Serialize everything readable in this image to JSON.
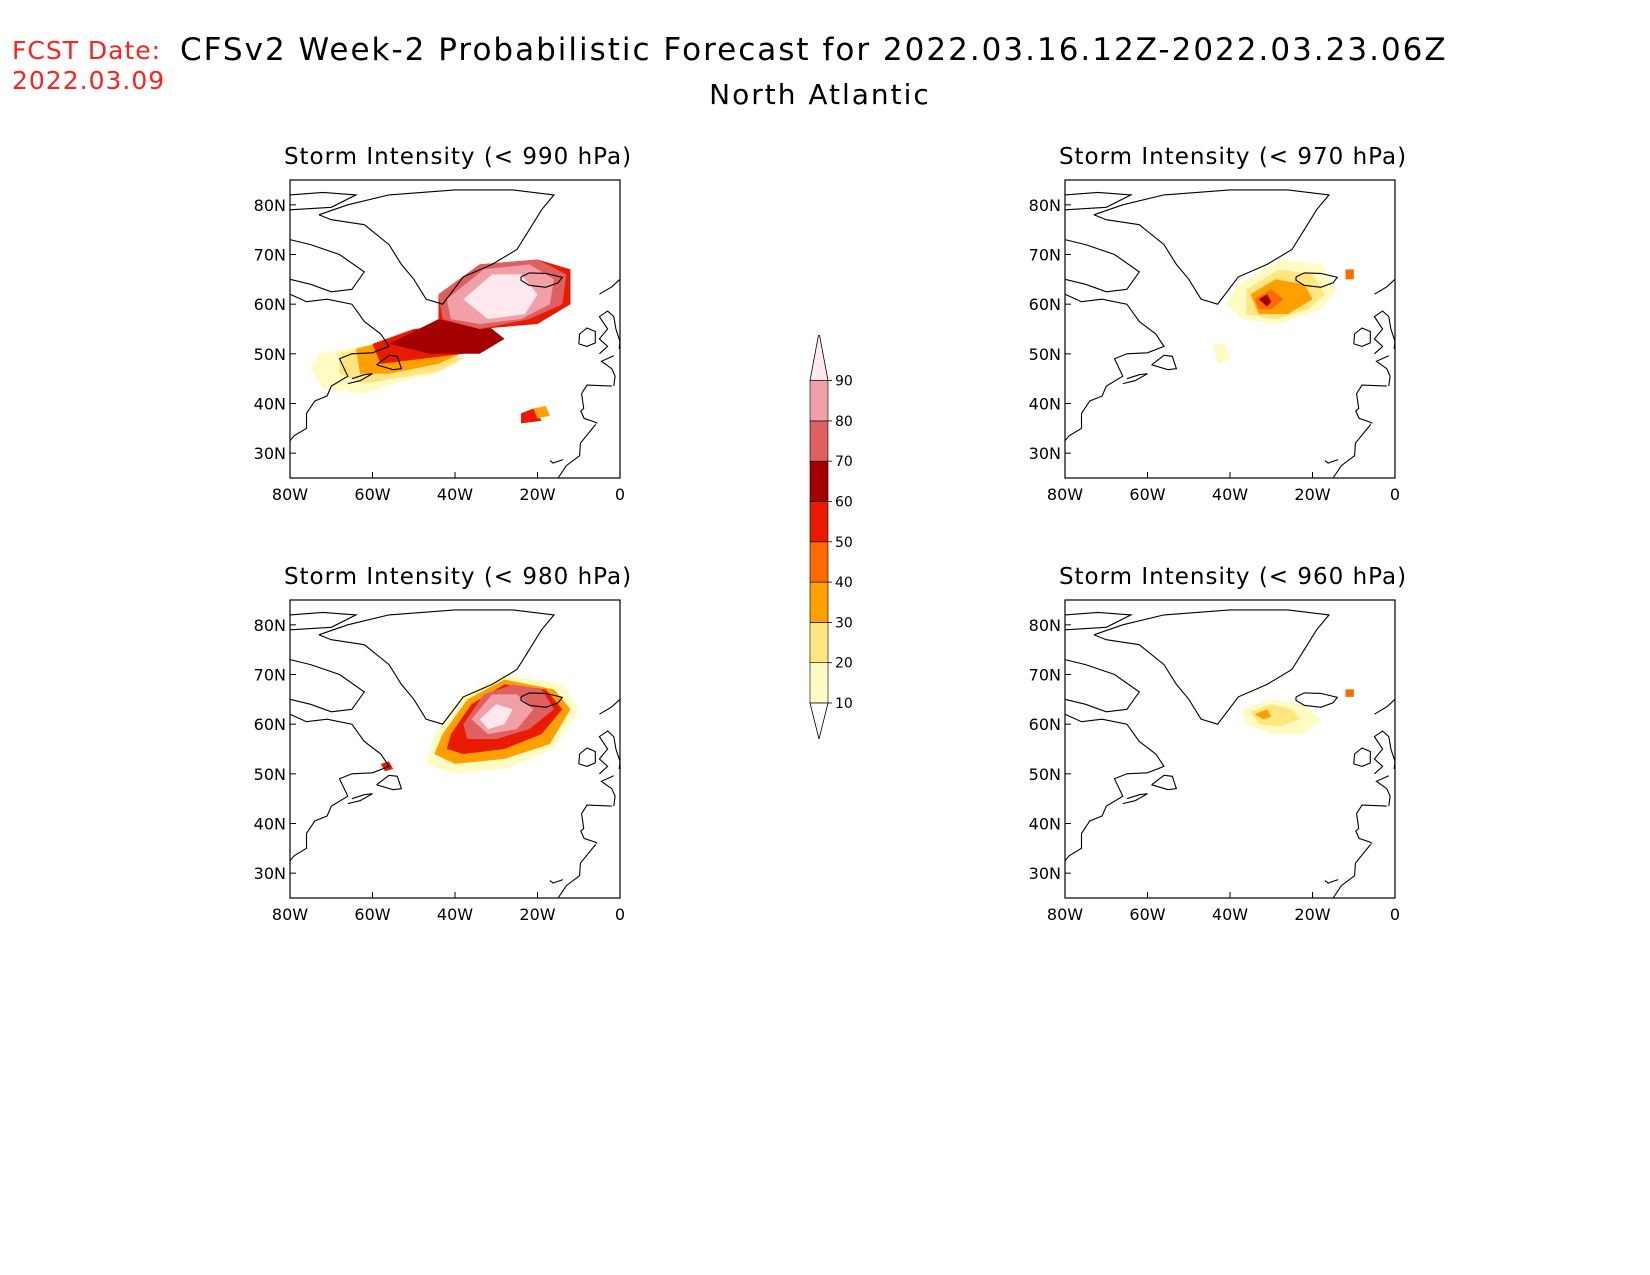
{
  "header": {
    "fcst_label": "FCST Date:",
    "fcst_date": "2022.03.09",
    "title": "CFSv2 Week-2 Probabilistic Forecast for 2022.03.16.12Z-2022.03.23.06Z",
    "subtitle": "North Atlantic"
  },
  "map_extent": {
    "lon": [
      -80,
      0
    ],
    "lat": [
      25,
      85
    ]
  },
  "axes": {
    "lat_ticks": [
      "80N",
      "70N",
      "60N",
      "50N",
      "40N",
      "30N"
    ],
    "lon_ticks": [
      "80W",
      "60W",
      "40W",
      "20W",
      "0"
    ]
  },
  "colorbar": {
    "levels": [
      "10",
      "20",
      "30",
      "40",
      "50",
      "60",
      "70",
      "80",
      "90"
    ],
    "colors": [
      "#fffbc2",
      "#ffe680",
      "#ffa000",
      "#ff6a00",
      "#e81a00",
      "#a40000",
      "#de6060",
      "#f2a0a8",
      "#ffe8ee"
    ]
  },
  "panels": [
    {
      "title": "Storm Intensity (< 990 hPa)",
      "regions": [
        {
          "level": 10,
          "points": [
            [
              -73,
              50
            ],
            [
              -60,
              52
            ],
            [
              -45,
              50
            ],
            [
              -40,
              48
            ],
            [
              -45,
              46
            ],
            [
              -55,
              44
            ],
            [
              -62,
              42
            ],
            [
              -72,
              43
            ],
            [
              -75,
              47
            ]
          ]
        },
        {
          "level": 20,
          "points": [
            [
              -68,
              50
            ],
            [
              -58,
              52
            ],
            [
              -44,
              51
            ],
            [
              -38,
              49
            ],
            [
              -44,
              46.5
            ],
            [
              -55,
              45
            ],
            [
              -62,
              44
            ],
            [
              -68,
              46
            ]
          ]
        },
        {
          "level": 30,
          "points": [
            [
              -64,
              51
            ],
            [
              -55,
              53
            ],
            [
              -42,
              53
            ],
            [
              -36,
              51
            ],
            [
              -44,
              48
            ],
            [
              -56,
              46
            ],
            [
              -63,
              46
            ]
          ]
        },
        {
          "level": 50,
          "points": [
            [
              -60,
              52
            ],
            [
              -50,
              55
            ],
            [
              -38,
              56
            ],
            [
              -30,
              54
            ],
            [
              -38,
              50
            ],
            [
              -48,
              49
            ],
            [
              -58,
              48
            ]
          ]
        },
        {
          "level": 60,
          "points": [
            [
              -56,
              52
            ],
            [
              -44,
              57
            ],
            [
              -34,
              57
            ],
            [
              -28,
              53
            ],
            [
              -34,
              50
            ],
            [
              -46,
              50
            ]
          ]
        },
        {
          "level": 50,
          "points": [
            [
              -44,
              62
            ],
            [
              -34,
              68
            ],
            [
              -20,
              69
            ],
            [
              -12,
              67
            ],
            [
              -12,
              60
            ],
            [
              -20,
              56
            ],
            [
              -34,
              55
            ],
            [
              -44,
              57
            ]
          ]
        },
        {
          "level": 70,
          "points": [
            [
              -44,
              62
            ],
            [
              -34,
              68
            ],
            [
              -20,
              69
            ],
            [
              -13,
              66
            ],
            [
              -14,
              60
            ],
            [
              -22,
              57
            ],
            [
              -34,
              55
            ],
            [
              -43,
              57
            ]
          ]
        },
        {
          "level": 80,
          "points": [
            [
              -42,
              61
            ],
            [
              -33,
              67
            ],
            [
              -22,
              68
            ],
            [
              -16,
              65
            ],
            [
              -17,
              60
            ],
            [
              -24,
              57
            ],
            [
              -34,
              56
            ],
            [
              -41,
              57
            ]
          ]
        },
        {
          "level": 90,
          "points": [
            [
              -38,
              61
            ],
            [
              -31,
              66
            ],
            [
              -24,
              66
            ],
            [
              -20,
              62
            ],
            [
              -23,
              58
            ],
            [
              -32,
              57
            ]
          ]
        },
        {
          "level": 50,
          "points": [
            [
              -24,
              38
            ],
            [
              -21,
              39
            ],
            [
              -19,
              36.5
            ],
            [
              -24,
              36
            ]
          ]
        },
        {
          "level": 30,
          "points": [
            [
              -21,
              39
            ],
            [
              -18,
              39.5
            ],
            [
              -17,
              37.5
            ],
            [
              -20,
              37
            ]
          ]
        }
      ]
    },
    {
      "title": "Storm Intensity (< 970 hPa)",
      "regions": [
        {
          "level": 10,
          "points": [
            [
              -38,
              64
            ],
            [
              -28,
              69
            ],
            [
              -18,
              68
            ],
            [
              -14,
              63
            ],
            [
              -18,
              59
            ],
            [
              -28,
              56
            ],
            [
              -37,
              57
            ],
            [
              -41,
              60
            ]
          ]
        },
        {
          "level": 20,
          "points": [
            [
              -36,
              63
            ],
            [
              -28,
              67
            ],
            [
              -20,
              66
            ],
            [
              -17,
              62
            ],
            [
              -21,
              59
            ],
            [
              -29,
              57
            ],
            [
              -36,
              58
            ]
          ]
        },
        {
          "level": 30,
          "points": [
            [
              -35,
              62
            ],
            [
              -29,
              65
            ],
            [
              -22,
              64
            ],
            [
              -20,
              61
            ],
            [
              -26,
              58
            ],
            [
              -33,
              58
            ]
          ]
        },
        {
          "level": 40,
          "points": [
            [
              -34,
              61
            ],
            [
              -30,
              63
            ],
            [
              -27,
              61
            ],
            [
              -30,
              59
            ],
            [
              -33,
              59
            ]
          ]
        },
        {
          "level": 60,
          "points": [
            [
              -33,
              61
            ],
            [
              -31,
              62
            ],
            [
              -30,
              60.5
            ],
            [
              -31,
              59.5
            ]
          ]
        },
        {
          "level": 10,
          "points": [
            [
              -44,
              52
            ],
            [
              -41,
              52
            ],
            [
              -40,
              49
            ],
            [
              -43,
              48
            ]
          ]
        },
        {
          "level": 40,
          "points": [
            [
              -12,
              67
            ],
            [
              -10,
              67
            ],
            [
              -10,
              65
            ],
            [
              -12,
              65
            ]
          ]
        }
      ]
    },
    {
      "title": "Storm Intensity (< 980 hPa)",
      "regions": [
        {
          "level": 10,
          "points": [
            [
              -45,
              58
            ],
            [
              -38,
              66
            ],
            [
              -28,
              70
            ],
            [
              -14,
              68
            ],
            [
              -10,
              63
            ],
            [
              -16,
              55
            ],
            [
              -28,
              51
            ],
            [
              -40,
              50
            ],
            [
              -47,
              52
            ]
          ]
        },
        {
          "level": 30,
          "points": [
            [
              -43,
              58
            ],
            [
              -37,
              65
            ],
            [
              -28,
              69
            ],
            [
              -16,
              67
            ],
            [
              -12,
              63
            ],
            [
              -17,
              56
            ],
            [
              -28,
              53
            ],
            [
              -40,
              52
            ],
            [
              -45,
              54
            ]
          ]
        },
        {
          "level": 50,
          "points": [
            [
              -41,
              58
            ],
            [
              -36,
              64
            ],
            [
              -28,
              68
            ],
            [
              -18,
              67
            ],
            [
              -14,
              63
            ],
            [
              -19,
              58
            ],
            [
              -28,
              55
            ],
            [
              -38,
              54
            ],
            [
              -42,
              55
            ]
          ]
        },
        {
          "level": 70,
          "points": [
            [
              -38,
              60
            ],
            [
              -33,
              66
            ],
            [
              -26,
              68
            ],
            [
              -19,
              67
            ],
            [
              -16,
              63
            ],
            [
              -22,
              59
            ],
            [
              -30,
              57
            ],
            [
              -37,
              57
            ]
          ]
        },
        {
          "level": 80,
          "points": [
            [
              -36,
              61
            ],
            [
              -31,
              66
            ],
            [
              -25,
              66
            ],
            [
              -21,
              63
            ],
            [
              -25,
              59
            ],
            [
              -32,
              58
            ]
          ]
        },
        {
          "level": 90,
          "points": [
            [
              -34,
              61
            ],
            [
              -30,
              64
            ],
            [
              -26,
              63
            ],
            [
              -28,
              60
            ],
            [
              -32,
              59
            ]
          ]
        },
        {
          "level": 50,
          "points": [
            [
              -58,
              52
            ],
            [
              -56,
              52.5
            ],
            [
              -55,
              51
            ],
            [
              -57,
              50.5
            ]
          ]
        }
      ]
    },
    {
      "title": "Storm Intensity (< 960 hPa)",
      "regions": [
        {
          "level": 10,
          "points": [
            [
              -37,
              63
            ],
            [
              -30,
              65
            ],
            [
              -22,
              64
            ],
            [
              -18,
              61
            ],
            [
              -22,
              58
            ],
            [
              -30,
              58
            ],
            [
              -36,
              60
            ]
          ]
        },
        {
          "level": 20,
          "points": [
            [
              -35,
              62.5
            ],
            [
              -30,
              64
            ],
            [
              -25,
              63
            ],
            [
              -23,
              61
            ],
            [
              -28,
              59.5
            ],
            [
              -33,
              60
            ]
          ]
        },
        {
          "level": 30,
          "points": [
            [
              -34,
              62
            ],
            [
              -31,
              63
            ],
            [
              -30,
              61.5
            ],
            [
              -32,
              61
            ]
          ]
        },
        {
          "level": 40,
          "points": [
            [
              -12,
              67
            ],
            [
              -10,
              67
            ],
            [
              -10,
              65.5
            ],
            [
              -12,
              65.5
            ]
          ]
        }
      ]
    }
  ]
}
